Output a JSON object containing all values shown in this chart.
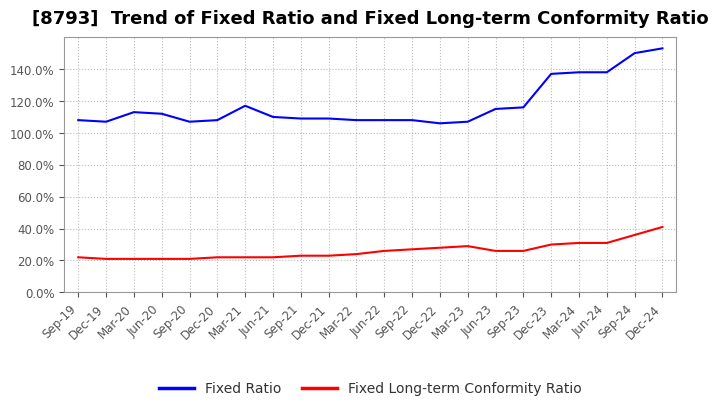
{
  "title": "[8793]  Trend of Fixed Ratio and Fixed Long-term Conformity Ratio",
  "x_labels": [
    "Sep-19",
    "Dec-19",
    "Mar-20",
    "Jun-20",
    "Sep-20",
    "Dec-20",
    "Mar-21",
    "Jun-21",
    "Sep-21",
    "Dec-21",
    "Mar-22",
    "Jun-22",
    "Sep-22",
    "Dec-22",
    "Mar-23",
    "Jun-23",
    "Sep-23",
    "Dec-23",
    "Mar-24",
    "Jun-24",
    "Sep-24",
    "Dec-24"
  ],
  "fixed_ratio": [
    108,
    107,
    113,
    112,
    107,
    108,
    117,
    110,
    109,
    109,
    108,
    108,
    108,
    106,
    107,
    115,
    116,
    137,
    138,
    138,
    150,
    153
  ],
  "fixed_lt_ratio": [
    22,
    21,
    21,
    21,
    21,
    22,
    22,
    22,
    23,
    23,
    24,
    26,
    27,
    28,
    29,
    26,
    26,
    30,
    31,
    31,
    36,
    41
  ],
  "fixed_ratio_color": "#0000FF",
  "fixed_lt_ratio_color": "#FF0000",
  "ylim": [
    0,
    160
  ],
  "ytick_values": [
    0,
    20,
    40,
    60,
    80,
    100,
    120,
    140
  ],
  "background_color": "#ffffff",
  "grid_color": "#bbbbbb",
  "tick_color": "#555555",
  "legend_fixed_ratio": "Fixed Ratio",
  "legend_fixed_lt_ratio": "Fixed Long-term Conformity Ratio",
  "title_fontsize": 13,
  "tick_fontsize": 8.5,
  "legend_fontsize": 10,
  "line_width": 1.5
}
